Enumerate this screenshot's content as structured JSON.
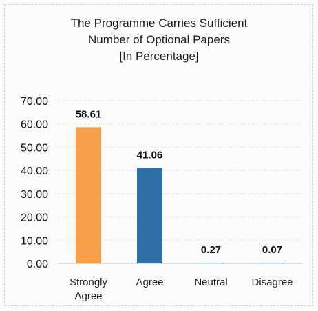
{
  "chart_data": {
    "type": "bar",
    "title": [
      "The Programme Carries Sufficient",
      "Number of Optional Papers",
      "[In Percentage]"
    ],
    "categories": [
      [
        "Strongly",
        "Agree"
      ],
      [
        "Agree"
      ],
      [
        "Neutral"
      ],
      [
        "Disagree"
      ]
    ],
    "values": [
      58.61,
      41.06,
      0.27,
      0.07
    ],
    "value_labels": [
      "58.61",
      "41.06",
      "0.27",
      "0.07"
    ],
    "colors": [
      "#f6a04b",
      "#2f6fa8",
      "#2f6fa8",
      "#2f6fa8"
    ],
    "ylim": [
      0,
      70
    ],
    "yticks": [
      "0.00",
      "10.00",
      "20.00",
      "30.00",
      "40.00",
      "50.00",
      "60.00",
      "70.00"
    ],
    "grid": true,
    "legend": "none",
    "xlabel": "",
    "ylabel": ""
  }
}
